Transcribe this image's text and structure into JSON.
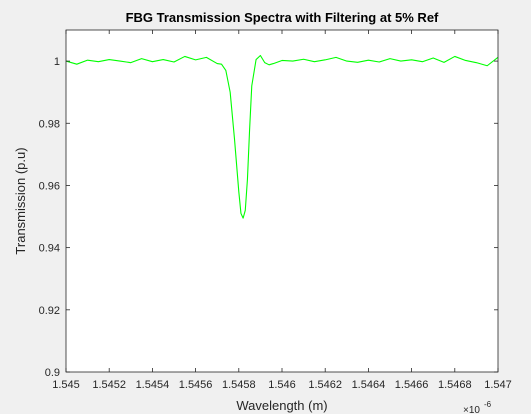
{
  "chart_data": {
    "type": "line",
    "title": "FBG Transmission Spectra with Filtering at 5% Ref",
    "xlabel": "Wavelength (m)",
    "ylabel": "Transmission (p.u)",
    "x_multiplier": "×10",
    "x_exponent": "-6",
    "xlim": [
      1.545,
      1.547
    ],
    "ylim": [
      0.9,
      1.01
    ],
    "x_ticks": [
      1.545,
      1.5452,
      1.5454,
      1.5456,
      1.5458,
      1.546,
      1.5462,
      1.5464,
      1.5466,
      1.5468,
      1.547
    ],
    "x_tick_labels": [
      "1.545",
      "1.5452",
      "1.5454",
      "1.5456",
      "1.5458",
      "1.546",
      "1.5462",
      "1.5464",
      "1.5466",
      "1.5468",
      "1.547"
    ],
    "y_ticks": [
      0.9,
      0.92,
      0.94,
      0.96,
      0.98,
      1
    ],
    "y_tick_labels": [
      "0.9",
      "0.92",
      "0.94",
      "0.96",
      "0.98",
      "1"
    ],
    "grid": false,
    "series": [
      {
        "color": "#00ff00",
        "x": [
          1.545,
          1.54505,
          1.5451,
          1.54515,
          1.5452,
          1.54525,
          1.5453,
          1.54535,
          1.5454,
          1.54545,
          1.5455,
          1.54555,
          1.5456,
          1.54565,
          1.5457,
          1.54572,
          1.54574,
          1.54576,
          1.54578,
          1.5458,
          1.54581,
          1.54582,
          1.54583,
          1.54584,
          1.54585,
          1.54586,
          1.54588,
          1.5459,
          1.54592,
          1.54594,
          1.54596,
          1.546,
          1.54605,
          1.5461,
          1.54615,
          1.5462,
          1.54625,
          1.5463,
          1.54635,
          1.5464,
          1.54645,
          1.5465,
          1.54655,
          1.5466,
          1.54665,
          1.5467,
          1.54675,
          1.5468,
          1.54685,
          1.5469,
          1.54695,
          1.547
        ],
        "y": [
          1.0,
          0.999,
          1.0003,
          0.9998,
          1.0005,
          1.0,
          0.9995,
          1.0008,
          0.9998,
          1.0005,
          0.9997,
          1.0015,
          1.0004,
          1.0012,
          0.9992,
          0.999,
          0.997,
          0.99,
          0.975,
          0.958,
          0.951,
          0.9495,
          0.952,
          0.962,
          0.978,
          0.992,
          1.0005,
          1.0018,
          0.9995,
          0.9988,
          0.9992,
          1.0002,
          1.0,
          1.0006,
          0.9998,
          1.0004,
          1.0012,
          1.0,
          0.9996,
          1.0003,
          0.9997,
          1.0008,
          1.0,
          1.0004,
          0.9998,
          1.001,
          0.9996,
          1.0015,
          1.0002,
          0.9995,
          0.9985,
          1.0012
        ]
      }
    ]
  }
}
